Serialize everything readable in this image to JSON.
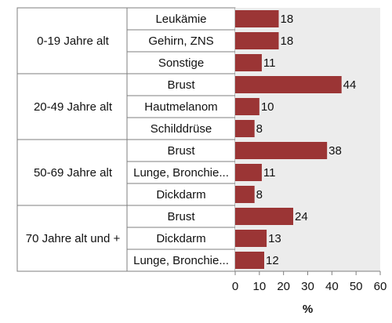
{
  "chart_data": {
    "type": "bar",
    "orientation": "horizontal",
    "groups": [
      {
        "label": "0-19 Jahre alt",
        "bars": [
          {
            "category": "Leukämie",
            "value": 18
          },
          {
            "category": "Gehirn, ZNS",
            "value": 18
          },
          {
            "category": "Sonstige",
            "value": 11
          }
        ]
      },
      {
        "label": "20-49 Jahre alt",
        "bars": [
          {
            "category": "Brust",
            "value": 44
          },
          {
            "category": "Hautmelanom",
            "value": 10
          },
          {
            "category": "Schilddrüse",
            "value": 8
          }
        ]
      },
      {
        "label": "50-69 Jahre alt",
        "bars": [
          {
            "category": "Brust",
            "value": 38
          },
          {
            "category": "Lunge, Bronchie...",
            "value": 11
          },
          {
            "category": "Dickdarm",
            "value": 8
          }
        ]
      },
      {
        "label": "70 Jahre alt und +",
        "bars": [
          {
            "category": "Brust",
            "value": 24
          },
          {
            "category": "Dickdarm",
            "value": 13
          },
          {
            "category": "Lunge, Bronchie...",
            "value": 12
          }
        ]
      }
    ],
    "xlabel": "%",
    "xlim": [
      0,
      60
    ],
    "xticks": [
      0,
      10,
      20,
      30,
      40,
      50,
      60
    ],
    "grid": false,
    "colors": {
      "bar": "#9b3535",
      "plot_background": "#ececec",
      "border": "#7f7f7f"
    }
  }
}
